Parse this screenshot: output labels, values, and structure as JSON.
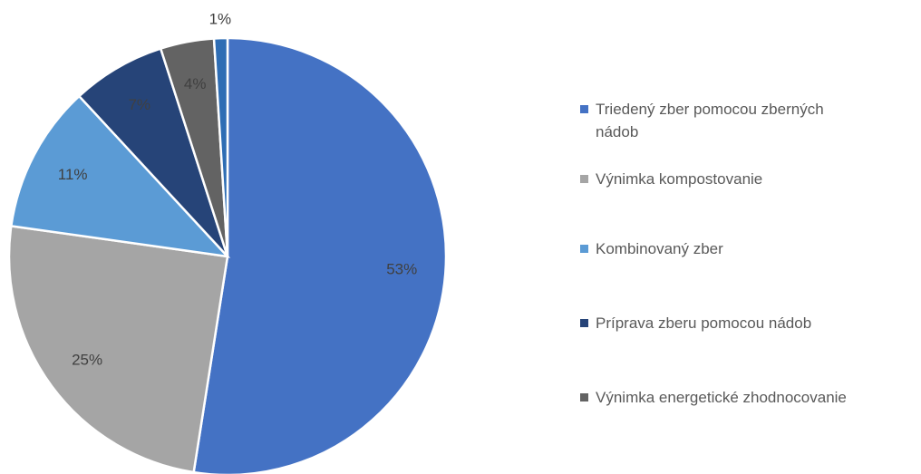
{
  "chart_data": {
    "type": "pie",
    "categories": [
      "Triedený zber pomocou zberných nádob",
      "Výnimka kompostovanie",
      "Kombinovaný zber",
      "Príprava zberu pomocou nádob",
      "Výnimka energetické zhodnocovanie",
      null
    ],
    "values": [
      53,
      25,
      11,
      7,
      4,
      1
    ],
    "value_labels": [
      "53%",
      "25%",
      "11%",
      "7%",
      "4%",
      "1%"
    ],
    "colors": [
      "#4472c4",
      "#a5a5a5",
      "#5b9bd5",
      "#264478",
      "#636363",
      "#2e6db4"
    ],
    "legend": "right"
  }
}
